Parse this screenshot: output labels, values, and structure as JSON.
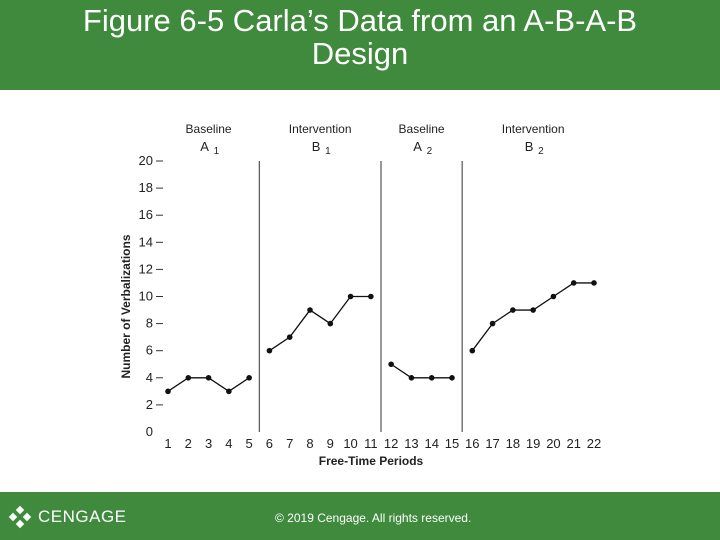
{
  "slide": {
    "title_line1": "Figure 6-5 Carla’s Data from an A-B-A-B",
    "title_line2": "Design",
    "brand": "CENGAGE",
    "copyright": "© 2019 Cengage. All rights reserved.",
    "header_color": "#3f8a3d",
    "footer_color": "#3f8a3d"
  },
  "chart_data": {
    "type": "line",
    "xlabel": "Free-Time Periods",
    "ylabel": "Number of Verbalizations",
    "xlim": [
      1,
      22
    ],
    "ylim": [
      0,
      20
    ],
    "x_ticks": [
      1,
      2,
      3,
      4,
      5,
      6,
      7,
      8,
      9,
      10,
      11,
      12,
      13,
      14,
      15,
      16,
      17,
      18,
      19,
      20,
      21,
      22
    ],
    "y_ticks": [
      0,
      2,
      4,
      6,
      8,
      10,
      12,
      14,
      16,
      18,
      20
    ],
    "grid": false,
    "phase_dividers": [
      5.5,
      11.5,
      15.5
    ],
    "phases": [
      {
        "label": "Baseline",
        "code": "A",
        "sub": "1",
        "x": [
          1,
          2,
          3,
          4,
          5
        ],
        "values": [
          3,
          4,
          4,
          3,
          4
        ]
      },
      {
        "label": "Intervention",
        "code": "B",
        "sub": "1",
        "x": [
          6,
          7,
          8,
          9,
          10,
          11
        ],
        "values": [
          6,
          7,
          9,
          8,
          10,
          10
        ]
      },
      {
        "label": "Baseline",
        "code": "A",
        "sub": "2",
        "x": [
          12,
          13,
          14,
          15
        ],
        "values": [
          5,
          4,
          4,
          4
        ]
      },
      {
        "label": "Intervention",
        "code": "B",
        "sub": "2",
        "x": [
          16,
          17,
          18,
          19,
          20,
          21,
          22
        ],
        "values": [
          6,
          8,
          9,
          9,
          10,
          11,
          11
        ]
      }
    ]
  }
}
